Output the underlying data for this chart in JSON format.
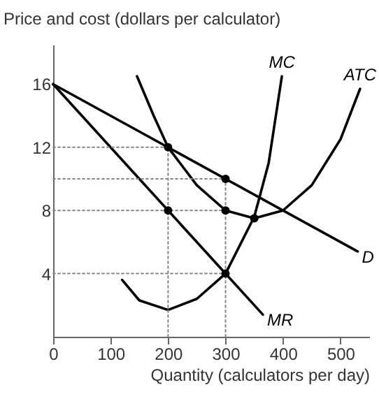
{
  "chart_data": {
    "type": "line",
    "xlabel": "Quantity (calculators per day)",
    "ylabel": "Price and cost (dollars per calculator)",
    "xlim": [
      0,
      550
    ],
    "ylim": [
      0,
      18.5
    ],
    "xticks": [
      0,
      100,
      200,
      300,
      400,
      500
    ],
    "yticks": [
      4,
      8,
      12,
      16
    ],
    "grid": false,
    "marker": "none",
    "series": [
      {
        "name": "D",
        "color": "#000000",
        "x": [
          0,
          530
        ],
        "values": [
          16,
          5.4
        ]
      },
      {
        "name": "MR",
        "color": "#000000",
        "x": [
          0,
          365
        ],
        "values": [
          16,
          1.4
        ]
      },
      {
        "name": "MC",
        "color": "#000000",
        "x": [
          120,
          150,
          200,
          250,
          300,
          350,
          375,
          398
        ],
        "values": [
          3.6,
          2.3,
          1.7,
          2.4,
          4,
          7.6,
          11,
          16.5
        ]
      },
      {
        "name": "ATC",
        "color": "#000000",
        "x": [
          146,
          175,
          200,
          250,
          300,
          350,
          400,
          450,
          500,
          534
        ],
        "values": [
          16.5,
          14,
          12,
          9.6,
          8,
          7.5,
          8,
          9.6,
          12.5,
          15.7
        ]
      },
      {
        "color": "#888888",
        "line_style": "dotted",
        "x": [
          0,
          200
        ],
        "values": [
          12,
          12
        ]
      },
      {
        "color": "#888888",
        "line_style": "dotted",
        "x": [
          0,
          300
        ],
        "values": [
          10,
          10
        ]
      },
      {
        "color": "#888888",
        "line_style": "dotted",
        "x": [
          0,
          300
        ],
        "values": [
          8,
          8
        ]
      },
      {
        "color": "#888888",
        "line_style": "dotted",
        "x": [
          0,
          300
        ],
        "values": [
          4,
          4
        ]
      },
      {
        "color": "#888888",
        "line_style": "dotted",
        "x": [
          200,
          200
        ],
        "values": [
          0,
          12
        ]
      },
      {
        "color": "#888888",
        "line_style": "dotted",
        "x": [
          300,
          300
        ],
        "values": [
          0,
          10
        ]
      },
      {
        "type": "scatter",
        "marker": "circle",
        "color": "#000000",
        "x": [
          200,
          300,
          300,
          350,
          200,
          300
        ],
        "values": [
          12,
          10,
          8,
          7.5,
          8,
          4
        ]
      }
    ]
  }
}
